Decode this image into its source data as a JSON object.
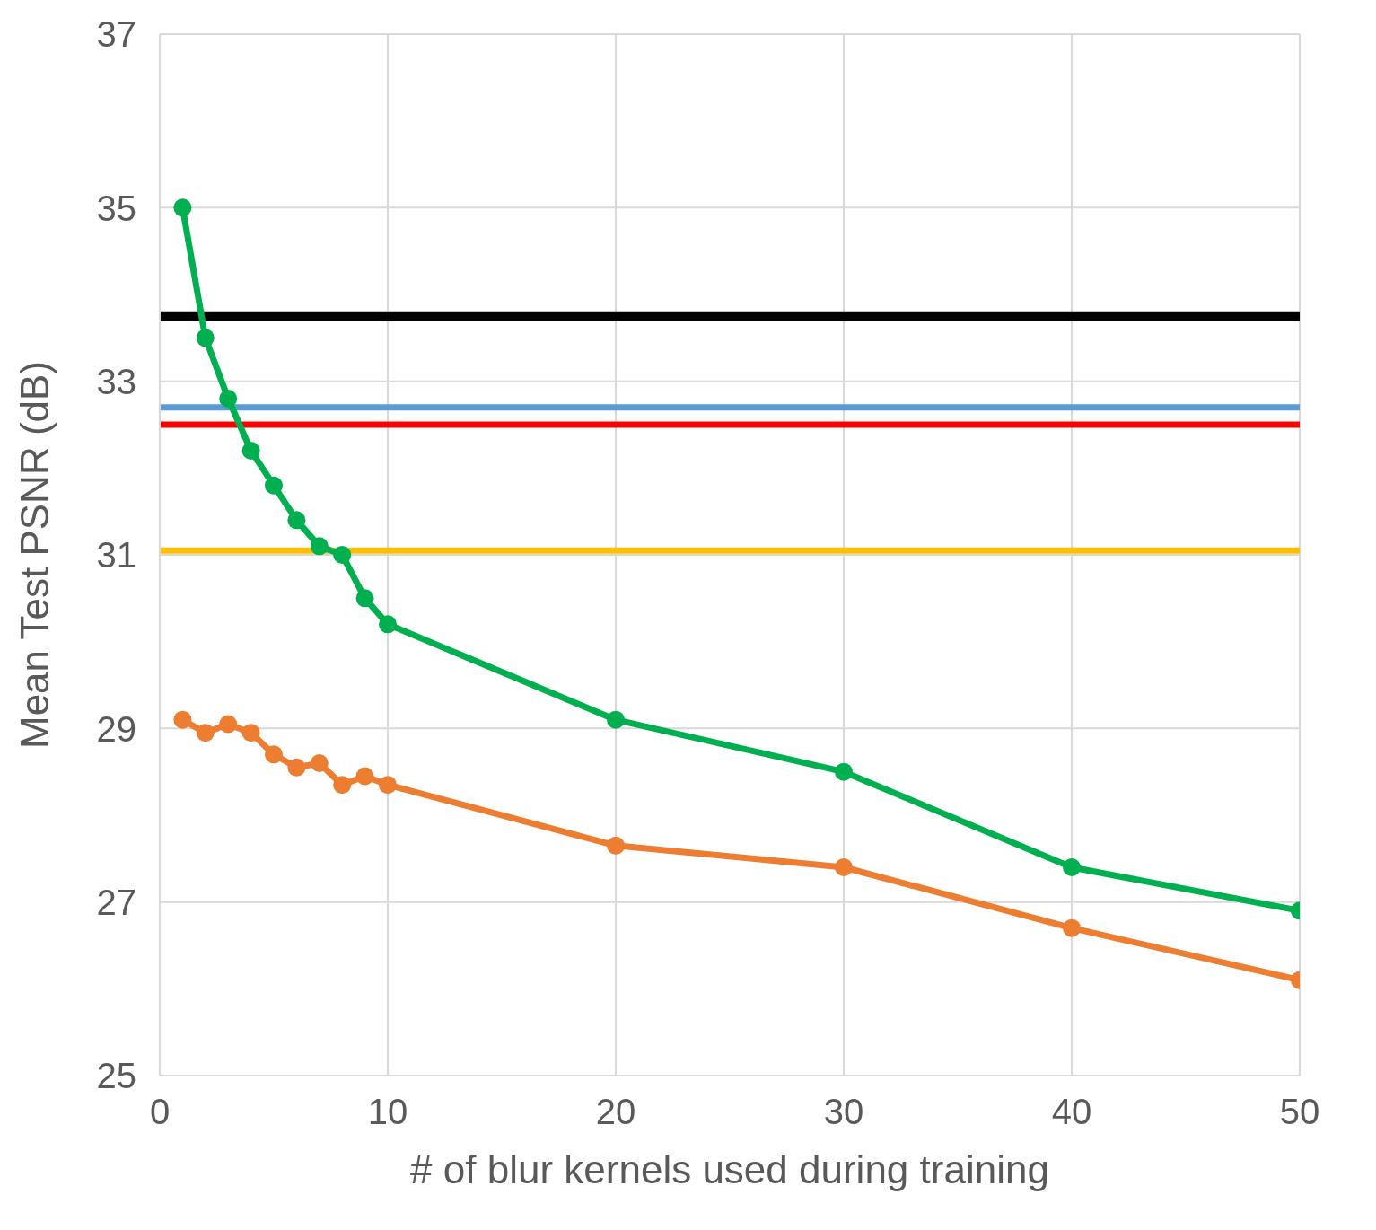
{
  "chart_data": {
    "type": "line",
    "xlabel": "# of blur kernels used during training",
    "ylabel": "Mean Test PSNR (dB)",
    "x": [
      1,
      2,
      3,
      4,
      5,
      6,
      7,
      8,
      9,
      10,
      20,
      30,
      40,
      50
    ],
    "series": [
      {
        "color": "#00b050",
        "values": [
          35.0,
          33.5,
          32.8,
          32.2,
          31.8,
          31.4,
          31.1,
          31.0,
          30.5,
          30.2,
          29.1,
          28.5,
          27.4,
          26.9
        ]
      },
      {
        "color": "#ed7d31",
        "values": [
          29.1,
          28.95,
          29.05,
          28.95,
          28.7,
          28.55,
          28.6,
          28.35,
          28.45,
          28.35,
          27.65,
          27.4,
          26.7,
          26.1
        ]
      }
    ],
    "ref_lines": [
      {
        "axis": "y",
        "value": 33.75,
        "color": "#000000"
      },
      {
        "axis": "y",
        "value": 32.7,
        "color": "#5b9bd5"
      },
      {
        "axis": "y",
        "value": 32.5,
        "color": "#ff0000"
      },
      {
        "axis": "y",
        "value": 31.05,
        "color": "#ffc000"
      }
    ],
    "xlim": [
      0,
      50
    ],
    "xticks": [
      0,
      10,
      20,
      30,
      40,
      50
    ],
    "ylim": [
      25,
      37
    ],
    "yticks": [
      25,
      27,
      29,
      31,
      33,
      35,
      37
    ],
    "grid": true,
    "marker": "circle",
    "line_style": "solid"
  }
}
